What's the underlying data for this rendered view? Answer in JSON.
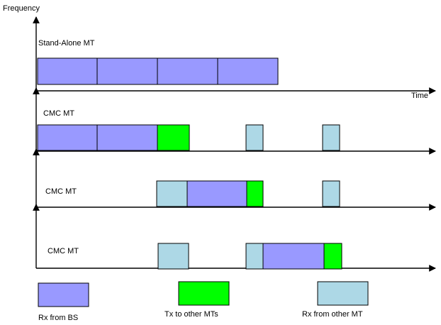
{
  "diagram": {
    "axis_label_y": "Frequency",
    "axis_label_x": "Time",
    "colors": {
      "rx_from_bs": "#9999ff",
      "tx_to_other_mts": "#00ff00",
      "rx_from_other_mt": "#add8e6",
      "stroke": "#000000"
    },
    "rows": [
      {
        "label": "Stand-Alone MT"
      },
      {
        "label": "CMC MT"
      },
      {
        "label": "CMC MT"
      },
      {
        "label": "CMC MT"
      }
    ],
    "legend": [
      {
        "key": "rx_from_bs",
        "label": "Rx from BS"
      },
      {
        "key": "tx_to_other_mts",
        "label": "Tx to other MTs"
      },
      {
        "key": "rx_from_other_mt",
        "label": "Rx from other MT"
      }
    ]
  }
}
